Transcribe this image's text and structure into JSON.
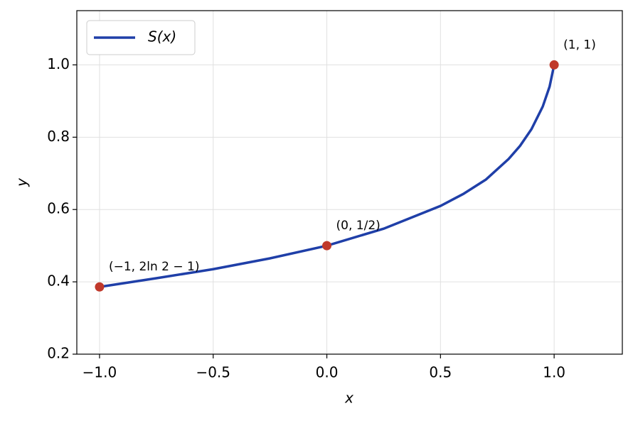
{
  "chart_data": {
    "type": "line",
    "xlabel": "x",
    "ylabel": "y",
    "series": [
      {
        "name": "S(x)",
        "color": "#1f3fa8",
        "x": [
          -1,
          -0.75,
          -0.5,
          -0.25,
          0,
          0.25,
          0.5,
          0.6,
          0.7,
          0.8,
          0.85,
          0.9,
          0.95,
          0.98,
          1
        ],
        "values": [
          0.386,
          0.41,
          0.435,
          0.465,
          0.5,
          0.547,
          0.61,
          0.643,
          0.683,
          0.74,
          0.776,
          0.822,
          0.885,
          0.94,
          1.0
        ]
      }
    ],
    "points": {
      "color": "#c0392b",
      "x": [
        -1,
        0,
        1
      ],
      "y": [
        0.386,
        0.5,
        1.0
      ],
      "labels": [
        "(−1,  2ln 2 − 1)",
        "(0,  1/2)",
        "(1,  1)"
      ]
    },
    "xlim": [
      -1.1,
      1.3
    ],
    "ylim": [
      0.2,
      1.15
    ],
    "xticks": [
      {
        "value": -1,
        "label": "−1.0"
      },
      {
        "value": -0.5,
        "label": "−0.5"
      },
      {
        "value": 0,
        "label": "0.0"
      },
      0.5,
      {
        "value": 1,
        "label": "1.0"
      }
    ],
    "yticks": [
      0.2,
      0.4,
      0.6,
      0.8,
      {
        "value": 1,
        "label": "1.0"
      }
    ],
    "grid": true,
    "legend": "upper left"
  }
}
